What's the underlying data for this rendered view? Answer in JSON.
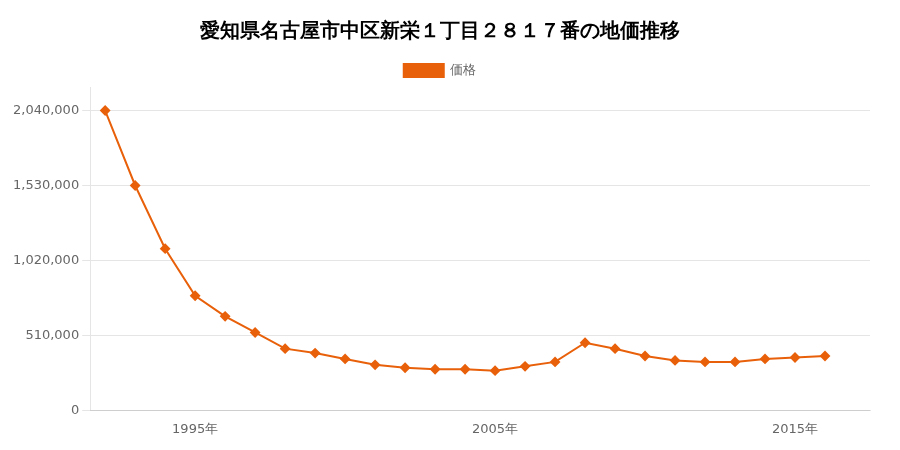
{
  "chart_data": {
    "type": "line",
    "title": "愛知県名古屋市中区新栄１丁目２８１７番の地価推移",
    "x": [
      1992,
      1993,
      1994,
      1995,
      1996,
      1997,
      1998,
      1999,
      2000,
      2001,
      2002,
      2003,
      2004,
      2005,
      2006,
      2007,
      2008,
      2009,
      2010,
      2011,
      2012,
      2013,
      2014,
      2015,
      2016
    ],
    "series": [
      {
        "name": "価格",
        "color": "#E8600A",
        "values": [
          2040000,
          1530000,
          1100000,
          780000,
          640000,
          530000,
          420000,
          390000,
          350000,
          310000,
          290000,
          280000,
          280000,
          270000,
          300000,
          330000,
          460000,
          420000,
          370000,
          340000,
          330000,
          330000,
          350000,
          360000,
          370000
        ]
      }
    ],
    "xlim": [
      1991.5,
      2017.5
    ],
    "xticks": [
      {
        "value": 1995,
        "label": "1995年"
      },
      {
        "value": 2005,
        "label": "2005年"
      },
      {
        "value": 2015,
        "label": "2015年"
      }
    ],
    "ylim": [
      0,
      2200000
    ],
    "yticks": [
      0,
      {
        "value": 510000,
        "label": "510,000"
      },
      {
        "value": 1020000,
        "label": "1,020,000"
      },
      {
        "value": 1530000,
        "label": "1,530,000"
      },
      {
        "value": 2040000,
        "label": "2,040,000"
      }
    ],
    "grid": "y",
    "legend": "top",
    "marker": "diamond"
  }
}
